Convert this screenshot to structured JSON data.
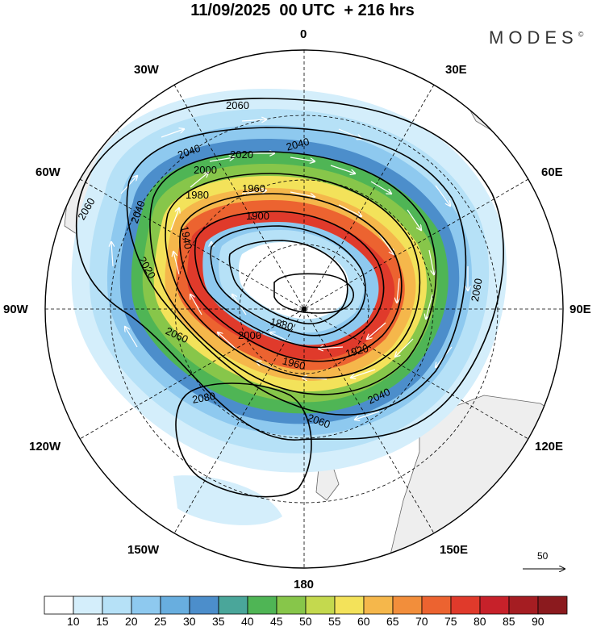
{
  "title": "11/09/2025  00 UTC  + 216 hrs",
  "brand": "MODES",
  "brand_mark": "©",
  "longitude_labels": {
    "lon_0": "0",
    "lon_30e": "30E",
    "lon_60e": "60E",
    "lon_90e": "90E",
    "lon_120e": "120E",
    "lon_150e": "150E",
    "lon_180": "180",
    "lon_150w": "150W",
    "lon_120w": "120W",
    "lon_90w": "90W",
    "lon_60w": "60W",
    "lon_30w": "30W"
  },
  "contours": {
    "c2060_top": "2060",
    "c2060_left": "2060",
    "c2060_right": "2060",
    "c2060_lower": "2060",
    "c2060_bottom": "2060",
    "c2040_a": "2040",
    "c2040_b": "2040",
    "c2040_c": "2040",
    "c2040_d": "2040",
    "c2020_a": "2020",
    "c2020_b": "2020",
    "c2000_a": "2000",
    "c2000_b": "2000",
    "c1980_a": "1980",
    "c1960_a": "1960",
    "c1960_b": "1960",
    "c1940_a": "1940",
    "c1920_a": "1920",
    "c1900_a": "1900",
    "c1880_a": "1880",
    "c2080_a": "2080"
  },
  "colorbar": {
    "ticks": [
      "10",
      "15",
      "20",
      "25",
      "30",
      "35",
      "40",
      "45",
      "50",
      "55",
      "60",
      "65",
      "70",
      "75",
      "80",
      "85",
      "90"
    ],
    "colors": [
      "#ffffff",
      "#d4eefb",
      "#b6e1f7",
      "#8ec9ef",
      "#68aedf",
      "#4c8ecb",
      "#4aa69a",
      "#4fb555",
      "#87c64a",
      "#c4d94e",
      "#f3e25a",
      "#f5b74b",
      "#f28e3b",
      "#ec6330",
      "#e03a2b",
      "#c7212a",
      "#a51d22",
      "#8b1a1e"
    ]
  },
  "wind_scale": {
    "label": "50"
  }
}
